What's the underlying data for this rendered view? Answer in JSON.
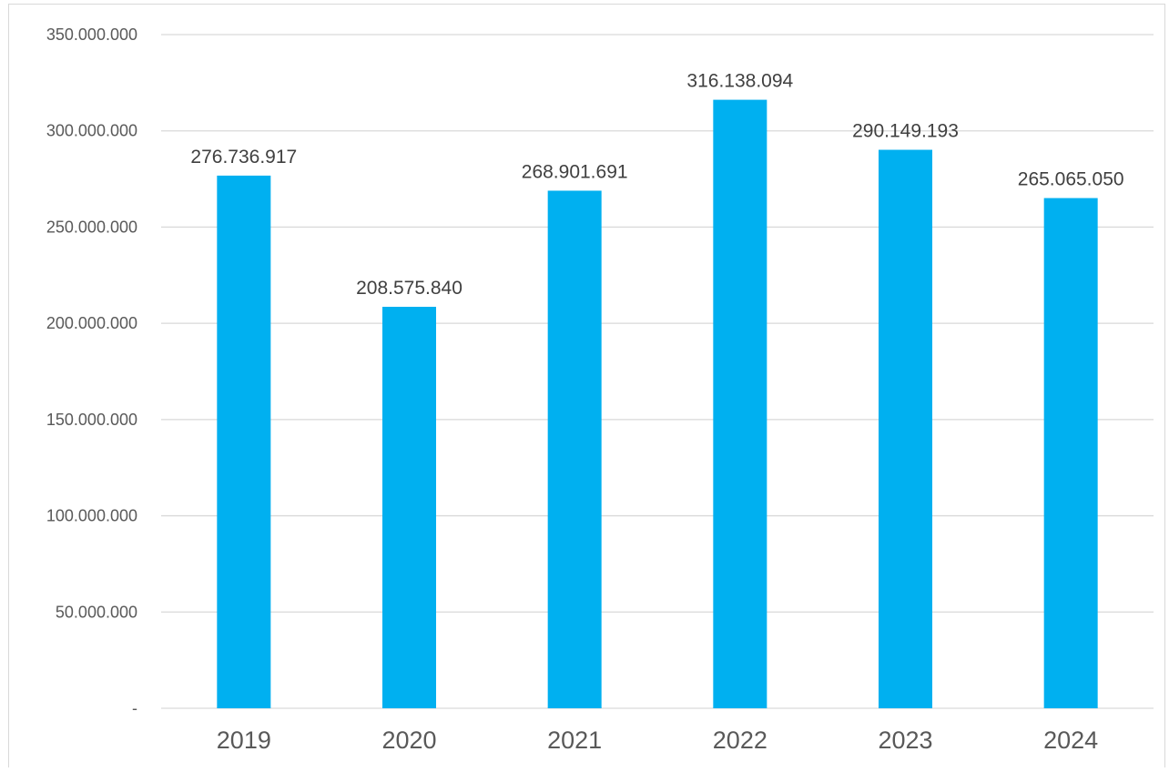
{
  "chart_data": {
    "type": "bar",
    "categories": [
      "2019",
      "2020",
      "2021",
      "2022",
      "2023",
      "2024"
    ],
    "values": [
      276736917,
      208575840,
      268901691,
      316138094,
      290149193,
      265065050
    ],
    "data_labels": [
      "276.736.917",
      "208.575.840",
      "268.901.691",
      "316.138.094",
      "290.149.193",
      "265.065.050"
    ],
    "title": "",
    "xlabel": "",
    "ylabel": "",
    "ylim": [
      0,
      350000000
    ],
    "y_ticks": [
      {
        "value": 0,
        "label": "-"
      },
      {
        "value": 50000000,
        "label": "50.000.000"
      },
      {
        "value": 100000000,
        "label": "100.000.000"
      },
      {
        "value": 150000000,
        "label": "150.000.000"
      },
      {
        "value": 200000000,
        "label": "200.000.000"
      },
      {
        "value": 250000000,
        "label": "250.000.000"
      },
      {
        "value": 300000000,
        "label": "300.000.000"
      },
      {
        "value": 350000000,
        "label": "350.000.000"
      }
    ],
    "grid": true,
    "legend": "none",
    "bar_color": "#00B0F0",
    "grid_color": "#d9d9d9",
    "label_color": "#404040"
  }
}
